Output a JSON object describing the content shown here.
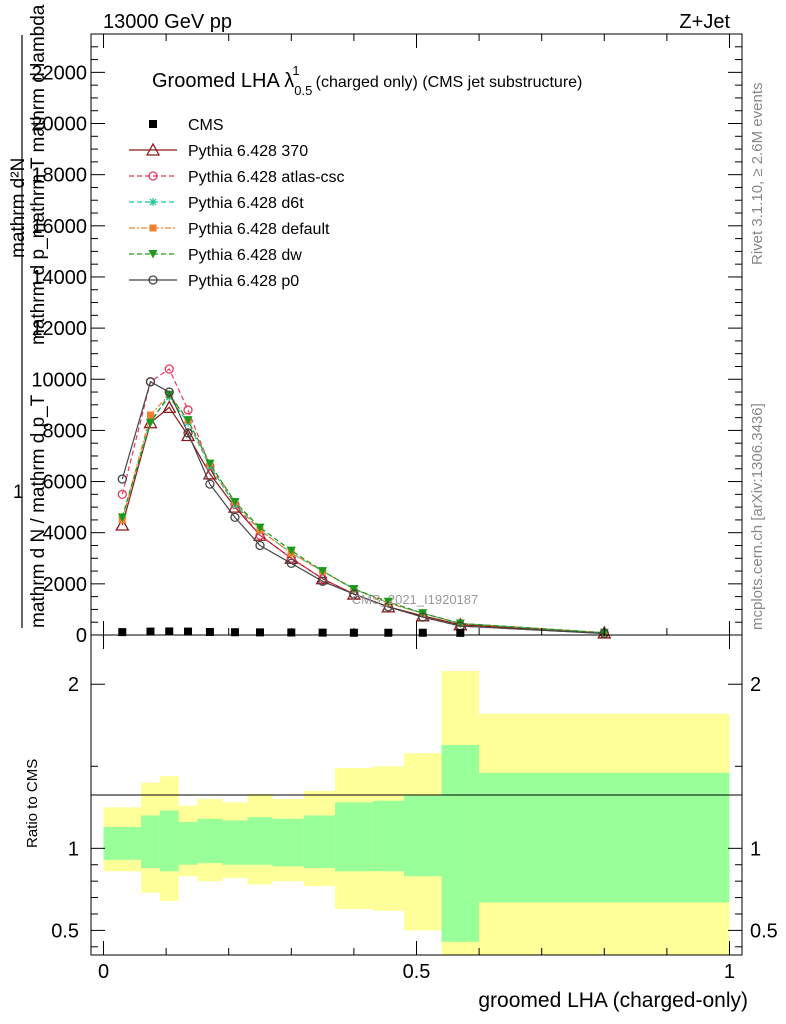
{
  "header": {
    "left": "13000 GeV pp",
    "right": "Z+Jet"
  },
  "side": {
    "rivet": "Rivet 3.1.10, ≥ 2.6M events",
    "mcplots": "mcplots.cern.ch [arXiv:1306.3436]"
  },
  "chart_data": {
    "type": "line",
    "title": "Groomed LHA λ",
    "title_sup": "1",
    "title_sub": "0.5",
    "title_rest": "(charged only) (CMS jet substructure)",
    "watermark": "CMS_2021_I1920187",
    "ylabel_lines": [
      "mathrm d²N",
      "mathrm d p_mathrm T mathrm d lambda",
      "1",
      "mathrm d N / mathrm d p_T"
    ],
    "xlabel": "groomed LHA (charged-only)",
    "ratio_ylabel": "Ratio to CMS",
    "xlim": [
      -0.02,
      1.02
    ],
    "ylim": [
      0,
      23500
    ],
    "ratio_ylim": [
      0.35,
      2.3
    ],
    "xticks": [
      "0",
      "0.5",
      "1"
    ],
    "yticks": [
      "0",
      "2000",
      "4000",
      "6000",
      "8000",
      "10000",
      "12000",
      "14000",
      "16000",
      "18000",
      "20000",
      "22000"
    ],
    "ratio_yticks": [
      "0.5",
      "1",
      "2"
    ],
    "x": [
      0.03,
      0.075,
      0.105,
      0.135,
      0.17,
      0.21,
      0.25,
      0.3,
      0.35,
      0.4,
      0.455,
      0.51,
      0.57,
      0.8
    ],
    "cms_values": [
      35,
      55,
      60,
      55,
      40,
      30,
      25,
      20,
      15,
      10,
      10,
      10,
      5,
      0
    ],
    "series": [
      {
        "name": "Pythia 6.428 370",
        "color": "#8b1a1a",
        "marker": "triangle-open",
        "dash": "",
        "values": [
          4300,
          8300,
          8900,
          7800,
          6300,
          5000,
          3900,
          3000,
          2200,
          1600,
          1100,
          750,
          400,
          80
        ]
      },
      {
        "name": "Pythia 6.428 atlas-csc",
        "color": "#e8385a",
        "marker": "circle-open",
        "dash": "5,3",
        "values": [
          5500,
          9900,
          10400,
          8800,
          6600,
          5100,
          3900,
          3000,
          2200,
          1600,
          1100,
          700,
          350,
          60
        ]
      },
      {
        "name": "Pythia 6.428 d6t",
        "color": "#1fc29a",
        "marker": "asterisk",
        "dash": "5,3",
        "values": [
          4600,
          8400,
          9300,
          8300,
          6600,
          5100,
          4100,
          3200,
          2500,
          1800,
          1250,
          850,
          450,
          90
        ]
      },
      {
        "name": "Pythia 6.428 default",
        "color": "#f08030",
        "marker": "square",
        "dash": "6,2,2,2",
        "values": [
          4500,
          8600,
          9400,
          8400,
          6700,
          5200,
          4100,
          3200,
          2500,
          1800,
          1250,
          850,
          450,
          90
        ]
      },
      {
        "name": "Pythia 6.428 dw",
        "color": "#1a9a1a",
        "marker": "triangle-down",
        "dash": "5,3",
        "values": [
          4600,
          8300,
          9400,
          8400,
          6700,
          5200,
          4200,
          3300,
          2500,
          1800,
          1300,
          850,
          450,
          90
        ]
      },
      {
        "name": "Pythia 6.428 p0",
        "color": "#444444",
        "marker": "circle-open",
        "dash": "",
        "values": [
          6100,
          9900,
          9500,
          7900,
          5900,
          4600,
          3500,
          2800,
          2100,
          1600,
          1100,
          700,
          350,
          60
        ]
      }
    ],
    "ratio_bands": {
      "edges": [
        0.0,
        0.06,
        0.09,
        0.12,
        0.15,
        0.19,
        0.23,
        0.27,
        0.32,
        0.37,
        0.43,
        0.48,
        0.54,
        0.6,
        1.0
      ],
      "green_lo": [
        0.93,
        0.88,
        0.86,
        0.9,
        0.91,
        0.9,
        0.9,
        0.89,
        0.88,
        0.86,
        0.86,
        0.83,
        0.43,
        0.67
      ],
      "green_hi": [
        1.13,
        1.2,
        1.23,
        1.16,
        1.18,
        1.17,
        1.19,
        1.18,
        1.2,
        1.28,
        1.29,
        1.32,
        1.63,
        1.46
      ],
      "yellow_lo": [
        0.86,
        0.73,
        0.68,
        0.83,
        0.8,
        0.82,
        0.78,
        0.8,
        0.77,
        0.63,
        0.62,
        0.5,
        0.2,
        0.2
      ],
      "yellow_hi": [
        1.25,
        1.4,
        1.44,
        1.26,
        1.3,
        1.28,
        1.33,
        1.3,
        1.35,
        1.49,
        1.5,
        1.58,
        2.08,
        1.82
      ]
    }
  }
}
